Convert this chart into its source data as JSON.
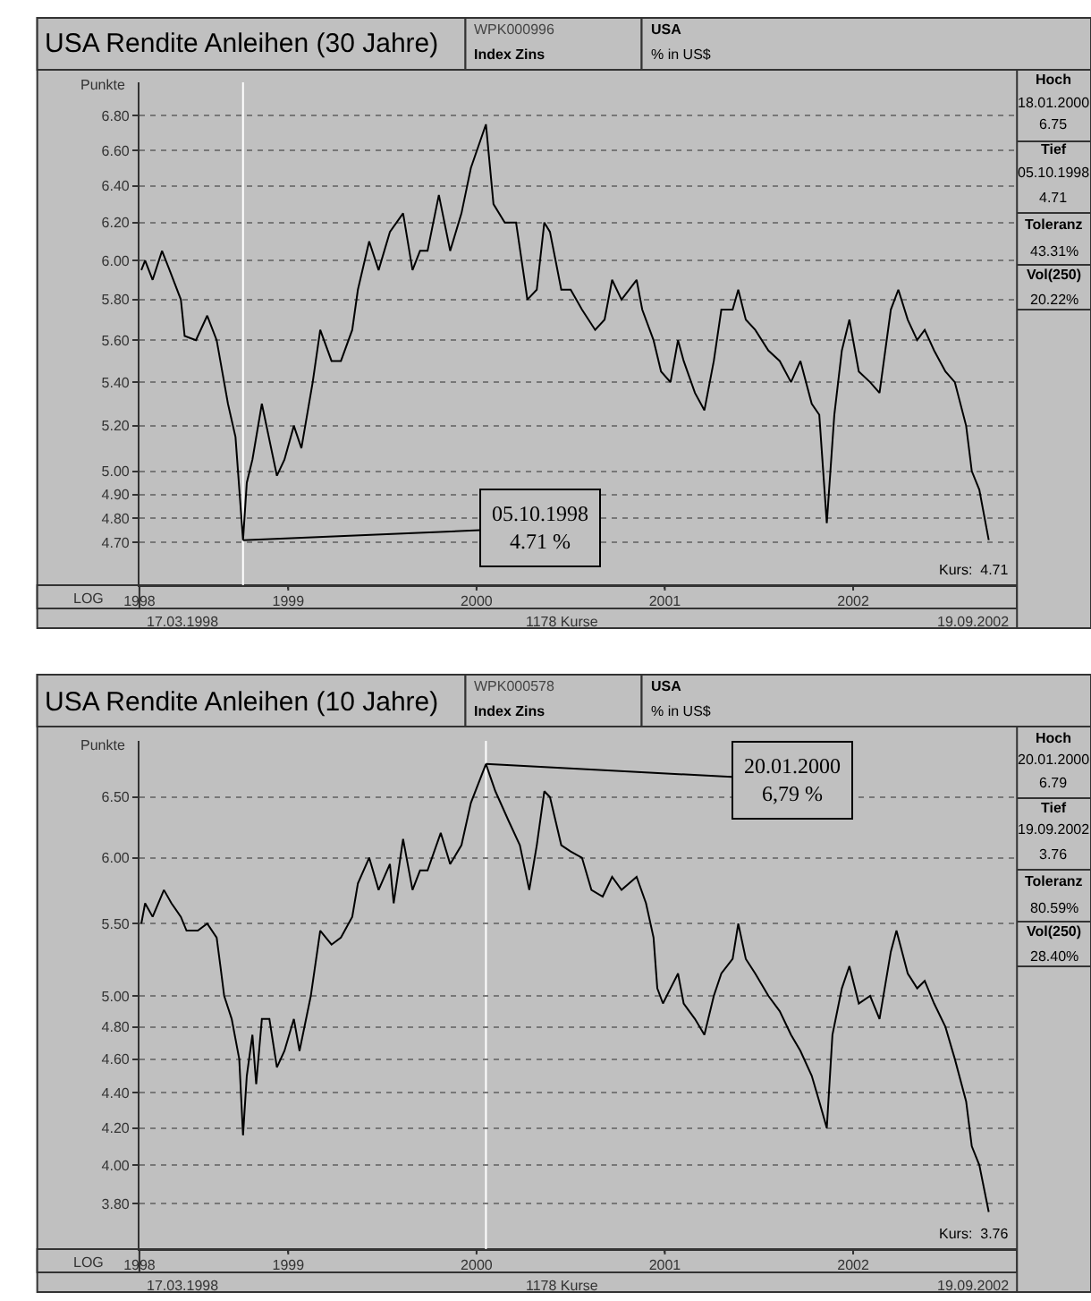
{
  "chart_data": [
    {
      "type": "line",
      "title": "USA Rendite Anleihen (30 Jahre)",
      "ylabel": "Punkte",
      "log": "y",
      "grid": "y",
      "xlim": [
        1998.21,
        2002.87
      ],
      "xticks": [
        {
          "value": 1998.21,
          "label": "1998"
        },
        1999,
        2000,
        2001,
        2002
      ],
      "ylim": [
        4.53,
        7.0
      ],
      "yticks": [
        {
          "value": 4.7,
          "label": "4.70"
        },
        {
          "value": 4.8,
          "label": "4.80"
        },
        {
          "value": 4.9,
          "label": "4.90"
        },
        {
          "value": 5.0,
          "label": "5.00"
        },
        {
          "value": 5.2,
          "label": "5.20"
        },
        {
          "value": 5.4,
          "label": "5.40"
        },
        {
          "value": 5.6,
          "label": "5.60"
        },
        {
          "value": 5.8,
          "label": "5.80"
        },
        {
          "value": 6.0,
          "label": "6.00"
        },
        {
          "value": 6.2,
          "label": "6.20"
        },
        {
          "value": 6.4,
          "label": "6.40"
        },
        {
          "value": 6.6,
          "label": "6.60"
        },
        {
          "value": 6.8,
          "label": "6.80"
        }
      ],
      "x": [
        1998.22,
        1998.24,
        1998.28,
        1998.33,
        1998.37,
        1998.43,
        1998.45,
        1998.51,
        1998.57,
        1998.62,
        1998.68,
        1998.72,
        1998.76,
        1998.78,
        1998.81,
        1998.86,
        1998.94,
        1998.98,
        1999.03,
        1999.07,
        1999.13,
        1999.17,
        1999.23,
        1999.28,
        1999.34,
        1999.37,
        1999.43,
        1999.48,
        1999.54,
        1999.61,
        1999.66,
        1999.7,
        1999.74,
        1999.8,
        1999.86,
        1999.92,
        1999.97,
        2000.05,
        2000.09,
        2000.15,
        2000.21,
        2000.27,
        2000.32,
        2000.36,
        2000.39,
        2000.45,
        2000.5,
        2000.56,
        2000.63,
        2000.68,
        2000.72,
        2000.77,
        2000.85,
        2000.88,
        2000.94,
        2000.98,
        2001.03,
        2001.07,
        2001.1,
        2001.16,
        2001.21,
        2001.26,
        2001.3,
        2001.36,
        2001.39,
        2001.43,
        2001.48,
        2001.55,
        2001.61,
        2001.67,
        2001.72,
        2001.78,
        2001.82,
        2001.86,
        2001.9,
        2001.94,
        2001.98,
        2002.03,
        2002.09,
        2002.14,
        2002.2,
        2002.24,
        2002.29,
        2002.34,
        2002.38,
        2002.43,
        2002.49,
        2002.54,
        2002.6,
        2002.63,
        2002.67,
        2002.72
      ],
      "series": [
        {
          "color": "#000000",
          "values": [
            5.95,
            6.0,
            5.9,
            6.05,
            5.95,
            5.8,
            5.62,
            5.6,
            5.72,
            5.6,
            5.3,
            5.15,
            4.71,
            4.95,
            5.05,
            5.3,
            4.98,
            5.05,
            5.2,
            5.1,
            5.4,
            5.65,
            5.5,
            5.5,
            5.65,
            5.85,
            6.1,
            5.95,
            6.15,
            6.25,
            5.95,
            6.05,
            6.05,
            6.35,
            6.05,
            6.25,
            6.5,
            6.75,
            6.3,
            6.2,
            6.2,
            5.8,
            5.85,
            6.2,
            6.15,
            5.85,
            5.85,
            5.75,
            5.65,
            5.7,
            5.9,
            5.8,
            5.9,
            5.75,
            5.6,
            5.45,
            5.4,
            5.6,
            5.5,
            5.35,
            5.27,
            5.5,
            5.75,
            5.75,
            5.85,
            5.7,
            5.65,
            5.55,
            5.5,
            5.4,
            5.5,
            5.3,
            5.25,
            4.78,
            5.25,
            5.55,
            5.7,
            5.45,
            5.4,
            5.35,
            5.75,
            5.85,
            5.7,
            5.6,
            5.65,
            5.55,
            5.45,
            5.4,
            5.2,
            5.0,
            4.92,
            4.71
          ]
        }
      ],
      "ref_lines": [
        {
          "axis": "x",
          "value": 1998.76,
          "color": "#ffffff"
        }
      ],
      "annotations": [
        "WPK000996",
        "Index Zins",
        "USA",
        "% in US$",
        "Hoch",
        "18.01.2000",
        "6.75",
        "Tief",
        "05.10.1998",
        "4.71",
        "Toleranz",
        "43.31%",
        "Vol(250)",
        "20.22%",
        "Kurs:  4.71",
        "LOG",
        "17.03.1998",
        "1178 Kurse",
        "19.09.2002",
        {
          "text": "05.10.1998\n4.71 %",
          "x": 1998.76,
          "y": 4.71
        }
      ]
    },
    {
      "type": "line",
      "title": "USA Rendite Anleihen (10 Jahre)",
      "ylabel": "Punkte",
      "log": "y",
      "grid": "y",
      "xlim": [
        1998.21,
        2002.87
      ],
      "xticks": [
        {
          "value": 1998.21,
          "label": "1998"
        },
        1999,
        2000,
        2001,
        2002
      ],
      "ylim": [
        3.58,
        7.0
      ],
      "yticks": [
        {
          "value": 3.8,
          "label": "3.80"
        },
        {
          "value": 4.0,
          "label": "4.00"
        },
        {
          "value": 4.2,
          "label": "4.20"
        },
        {
          "value": 4.4,
          "label": "4.40"
        },
        {
          "value": 4.6,
          "label": "4.60"
        },
        {
          "value": 4.8,
          "label": "4.80"
        },
        {
          "value": 5.0,
          "label": "5.00"
        },
        {
          "value": 5.5,
          "label": "5.50"
        },
        {
          "value": 6.0,
          "label": "6.00"
        },
        {
          "value": 6.5,
          "label": "6.50"
        }
      ],
      "x": [
        1998.22,
        1998.24,
        1998.28,
        1998.34,
        1998.38,
        1998.43,
        1998.46,
        1998.52,
        1998.57,
        1998.62,
        1998.64,
        1998.66,
        1998.7,
        1998.74,
        1998.76,
        1998.78,
        1998.81,
        1998.83,
        1998.86,
        1998.9,
        1998.94,
        1998.98,
        1999.03,
        1999.06,
        1999.12,
        1999.17,
        1999.23,
        1999.28,
        1999.34,
        1999.37,
        1999.43,
        1999.48,
        1999.54,
        1999.56,
        1999.61,
        1999.66,
        1999.7,
        1999.74,
        1999.81,
        1999.86,
        1999.92,
        1999.97,
        2000.05,
        2000.1,
        2000.17,
        2000.23,
        2000.28,
        2000.32,
        2000.36,
        2000.39,
        2000.45,
        2000.5,
        2000.56,
        2000.61,
        2000.67,
        2000.72,
        2000.77,
        2000.85,
        2000.9,
        2000.94,
        2000.96,
        2000.99,
        2001.03,
        2001.07,
        2001.1,
        2001.16,
        2001.21,
        2001.26,
        2001.3,
        2001.36,
        2001.39,
        2001.43,
        2001.48,
        2001.55,
        2001.61,
        2001.67,
        2001.72,
        2001.78,
        2001.82,
        2001.86,
        2001.89,
        2001.94,
        2001.98,
        2002.03,
        2002.09,
        2002.14,
        2002.2,
        2002.23,
        2002.29,
        2002.34,
        2002.38,
        2002.43,
        2002.49,
        2002.54,
        2002.6,
        2002.63,
        2002.67,
        2002.72
      ],
      "series": [
        {
          "color": "#000000",
          "values": [
            5.5,
            5.65,
            5.55,
            5.75,
            5.65,
            5.55,
            5.45,
            5.45,
            5.5,
            5.4,
            5.2,
            5.0,
            4.85,
            4.6,
            4.16,
            4.5,
            4.75,
            4.45,
            4.85,
            4.85,
            4.55,
            4.65,
            4.85,
            4.65,
            5.0,
            5.45,
            5.35,
            5.4,
            5.55,
            5.8,
            6.0,
            5.75,
            5.95,
            5.65,
            6.15,
            5.75,
            5.9,
            5.9,
            6.2,
            5.95,
            6.1,
            6.45,
            6.79,
            6.55,
            6.3,
            6.1,
            5.75,
            6.1,
            6.55,
            6.5,
            6.1,
            6.05,
            6.0,
            5.75,
            5.7,
            5.85,
            5.75,
            5.85,
            5.65,
            5.4,
            5.05,
            4.95,
            5.05,
            5.15,
            4.95,
            4.85,
            4.75,
            5.0,
            5.15,
            5.25,
            5.5,
            5.25,
            5.15,
            5.0,
            4.9,
            4.75,
            4.65,
            4.5,
            4.35,
            4.2,
            4.75,
            5.05,
            5.2,
            4.95,
            5.0,
            4.85,
            5.3,
            5.45,
            5.15,
            5.05,
            5.1,
            4.95,
            4.8,
            4.6,
            4.35,
            4.1,
            4.0,
            3.76
          ]
        }
      ],
      "ref_lines": [
        {
          "axis": "x",
          "value": 2000.05,
          "color": "#ffffff"
        }
      ],
      "annotations": [
        "WPK000578",
        "Index Zins",
        "USA",
        "% in US$",
        "Hoch",
        "20.01.2000",
        "6.79",
        "Tief",
        "19.09.2002",
        "3.76",
        "Toleranz",
        "80.59%",
        "Vol(250)",
        "28.40%",
        "Kurs:  3.76",
        "LOG",
        "17.03.1998",
        "1178 Kurse",
        "19.09.2002",
        {
          "text": "20.01.2000\n6,79 %",
          "x": 2000.05,
          "y": 6.79
        }
      ]
    }
  ]
}
